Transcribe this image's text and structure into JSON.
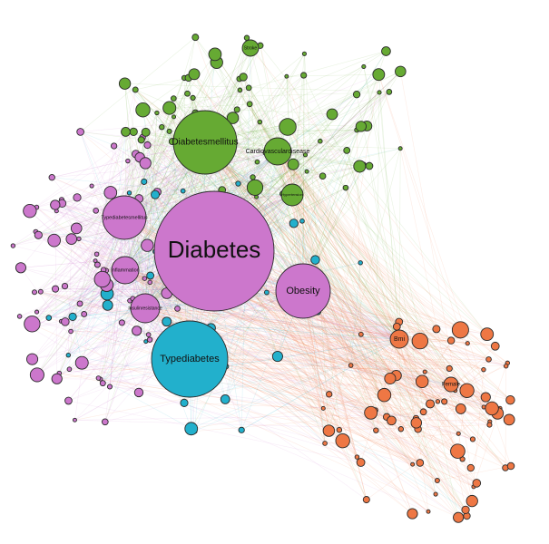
{
  "palette": {
    "magenta": "#cc77cc",
    "green": "#66aa33",
    "cyan": "#22b0cc",
    "orange": "#ee7744"
  },
  "labeled_nodes": [
    {
      "id": "diabetes",
      "label": "Diabetes",
      "cluster": "magenta"
    },
    {
      "id": "diabetesmellitus",
      "label": "Diabetesmellitus",
      "cluster": "green"
    },
    {
      "id": "cardiovasculardisease",
      "label": "Cardiovasculardisease",
      "cluster": "green"
    },
    {
      "id": "hypertension",
      "label": "Hypertension",
      "cluster": "green"
    },
    {
      "id": "stroke",
      "label": "Stroke",
      "cluster": "green"
    },
    {
      "id": "typediabetesmellitus",
      "label": "Typediabetesmellitus",
      "cluster": "magenta"
    },
    {
      "id": "inflammation",
      "label": "Inflammation",
      "cluster": "magenta"
    },
    {
      "id": "insulinresistance",
      "label": "Insulinresistance",
      "cluster": "magenta"
    },
    {
      "id": "obesity",
      "label": "Obesity",
      "cluster": "magenta"
    },
    {
      "id": "typediabetes",
      "label": "Typediabetes",
      "cluster": "cyan"
    },
    {
      "id": "bmi",
      "label": "Bmi",
      "cluster": "orange"
    },
    {
      "id": "female",
      "label": "Female",
      "cluster": "orange"
    }
  ]
}
